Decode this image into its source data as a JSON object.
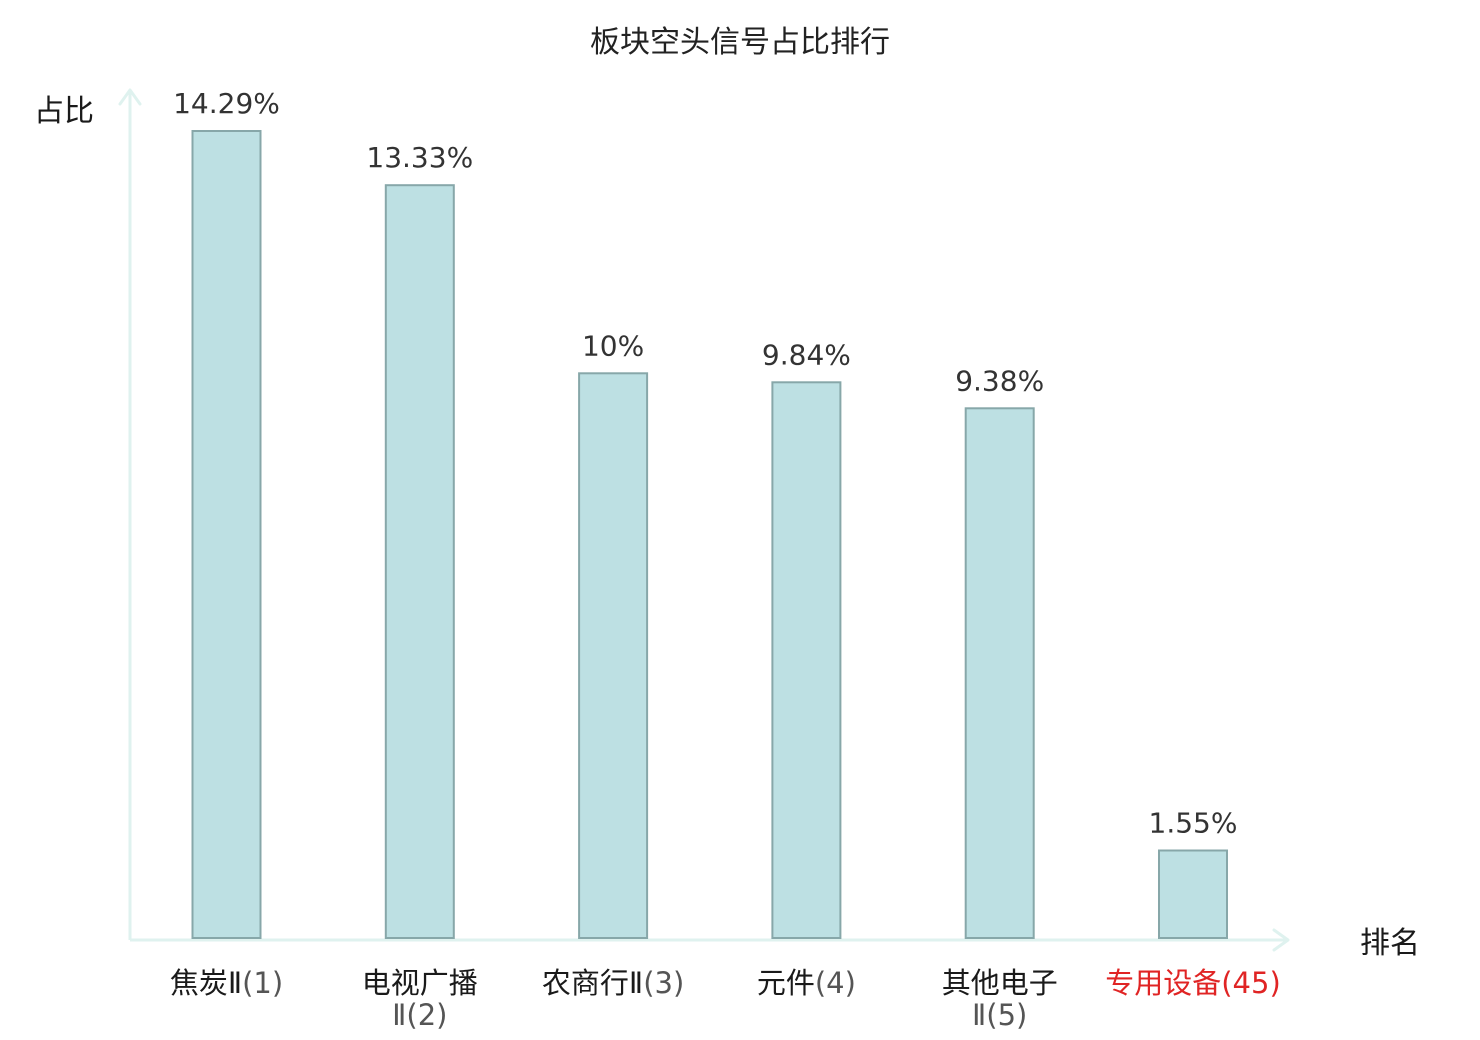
{
  "chart_data": {
    "type": "bar",
    "title": "板块空头信号占比排行",
    "ylabel": "占比",
    "xlabel": "排名",
    "categories": [
      {
        "name": "焦炭Ⅱ",
        "rank": "(1)",
        "highlight": false
      },
      {
        "name": "电视广播Ⅱ",
        "rank": "(2)",
        "highlight": false
      },
      {
        "name": "农商行Ⅱ",
        "rank": "(3)",
        "highlight": false
      },
      {
        "name": "元件",
        "rank": "(4)",
        "highlight": false
      },
      {
        "name": "其他电子Ⅱ",
        "rank": "(5)",
        "highlight": false
      },
      {
        "name": "专用设备",
        "rank": "(45)",
        "highlight": true
      }
    ],
    "values": [
      14.29,
      13.33,
      10,
      9.84,
      9.38,
      1.55
    ],
    "value_labels": [
      "14.29%",
      "13.33%",
      "10%",
      "9.84%",
      "9.38%",
      "1.55%"
    ],
    "unit": "%",
    "ylim": [
      0,
      14.29
    ],
    "grid": false,
    "legend": "none",
    "colors": {
      "bar_fill": "#bde0e3",
      "bar_stroke": "#87a7a9",
      "axis": "#dff2ef",
      "highlight_label": "#e02424",
      "text": "#1a1a1a"
    }
  }
}
